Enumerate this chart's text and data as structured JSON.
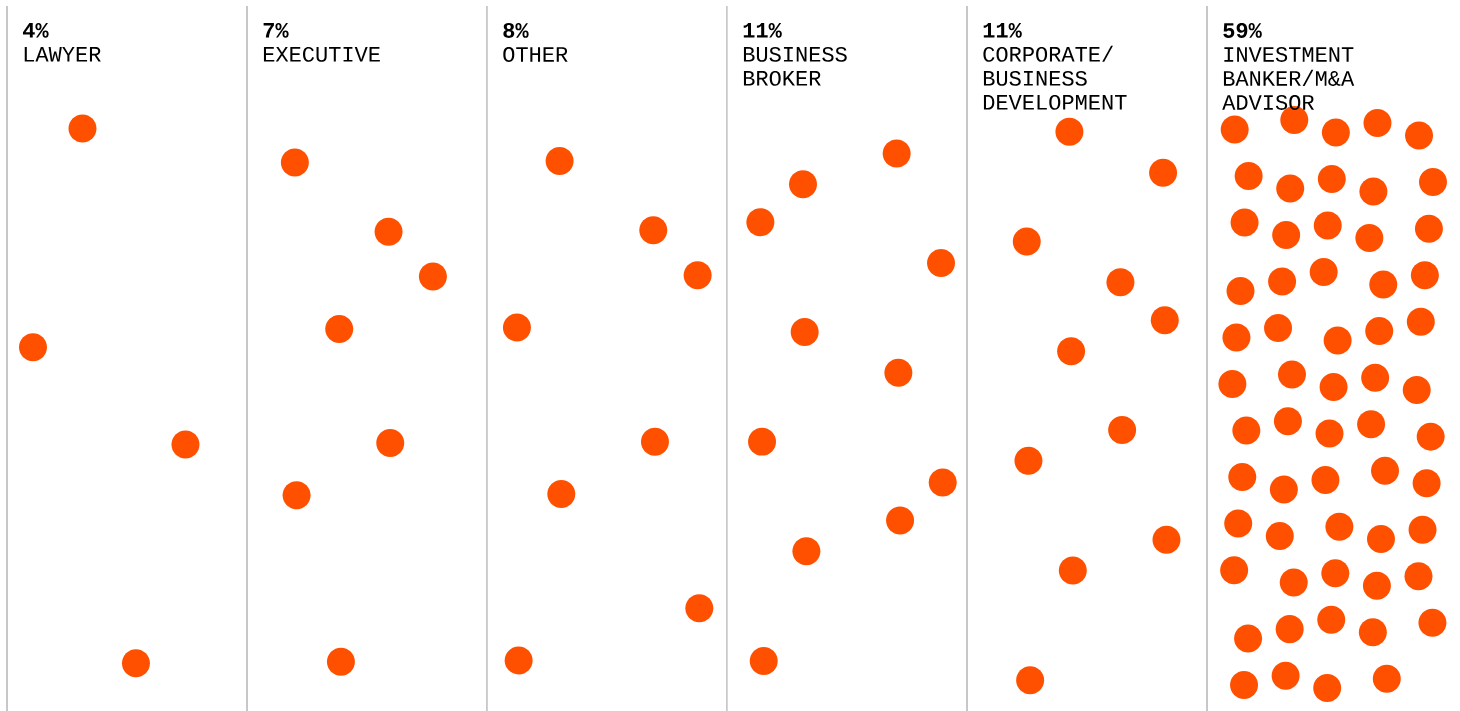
{
  "chart_data": {
    "type": "other",
    "categories": [
      "LAWYER",
      "EXECUTIVE",
      "OTHER",
      "BUSINESS BROKER",
      "CORPORATE/BUSINESS DEVELOPMENT",
      "INVESTMENT BANKER/M&A ADVISOR"
    ],
    "values": [
      4,
      7,
      8,
      11,
      11,
      59
    ],
    "value_labels": [
      "4%",
      "7%",
      "8%",
      "11%",
      "11%",
      "59%"
    ],
    "color": "#ff5000"
  }
}
